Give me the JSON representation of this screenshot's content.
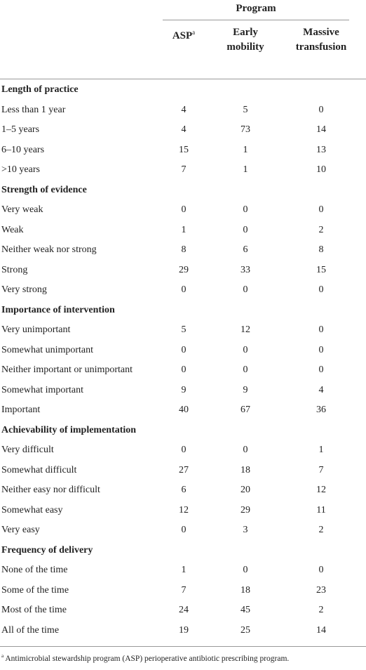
{
  "header": {
    "program": "Program",
    "columns": [
      {
        "label": "ASP",
        "superscript": "a"
      },
      {
        "label": "Early mobility"
      },
      {
        "label": "Massive transfusion"
      }
    ]
  },
  "sections": [
    {
      "title": "Length of practice",
      "rows": [
        {
          "label": "Less than 1 year",
          "values": [
            4,
            5,
            0
          ]
        },
        {
          "label": "1–5 years",
          "values": [
            4,
            73,
            14
          ]
        },
        {
          "label": "6–10 years",
          "values": [
            15,
            1,
            13
          ]
        },
        {
          "label": ">10 years",
          "values": [
            7,
            1,
            10
          ]
        }
      ]
    },
    {
      "title": "Strength of evidence",
      "rows": [
        {
          "label": "Very weak",
          "values": [
            0,
            0,
            0
          ]
        },
        {
          "label": "Weak",
          "values": [
            1,
            0,
            2
          ]
        },
        {
          "label": "Neither weak nor strong",
          "values": [
            8,
            6,
            8
          ]
        },
        {
          "label": "Strong",
          "values": [
            29,
            33,
            15
          ]
        },
        {
          "label": "Very strong",
          "values": [
            0,
            0,
            0
          ]
        }
      ]
    },
    {
      "title": "Importance of intervention",
      "rows": [
        {
          "label": "Very unimportant",
          "values": [
            5,
            12,
            0
          ]
        },
        {
          "label": "Somewhat unimportant",
          "values": [
            0,
            0,
            0
          ]
        },
        {
          "label": "Neither important or unimportant",
          "values": [
            0,
            0,
            0
          ]
        },
        {
          "label": "Somewhat important",
          "values": [
            9,
            9,
            4
          ]
        },
        {
          "label": "Important",
          "values": [
            40,
            67,
            36
          ]
        }
      ]
    },
    {
      "title": "Achievability of implementation",
      "rows": [
        {
          "label": "Very difficult",
          "values": [
            0,
            0,
            1
          ]
        },
        {
          "label": "Somewhat difficult",
          "values": [
            27,
            18,
            7
          ]
        },
        {
          "label": "Neither easy nor difficult",
          "values": [
            6,
            20,
            12
          ]
        },
        {
          "label": "Somewhat easy",
          "values": [
            12,
            29,
            11
          ]
        },
        {
          "label": "Very easy",
          "values": [
            0,
            3,
            2
          ]
        }
      ]
    },
    {
      "title": "Frequency of delivery",
      "rows": [
        {
          "label": "None of the time",
          "values": [
            1,
            0,
            0
          ]
        },
        {
          "label": "Some of the time",
          "values": [
            7,
            18,
            23
          ]
        },
        {
          "label": "Most of the time",
          "values": [
            24,
            45,
            2
          ]
        },
        {
          "label": "All of the time",
          "values": [
            19,
            25,
            14
          ]
        }
      ]
    }
  ],
  "footnote": {
    "marker": "a",
    "text": "Antimicrobial stewardship program (ASP) perioperative antibiotic prescribing program."
  }
}
